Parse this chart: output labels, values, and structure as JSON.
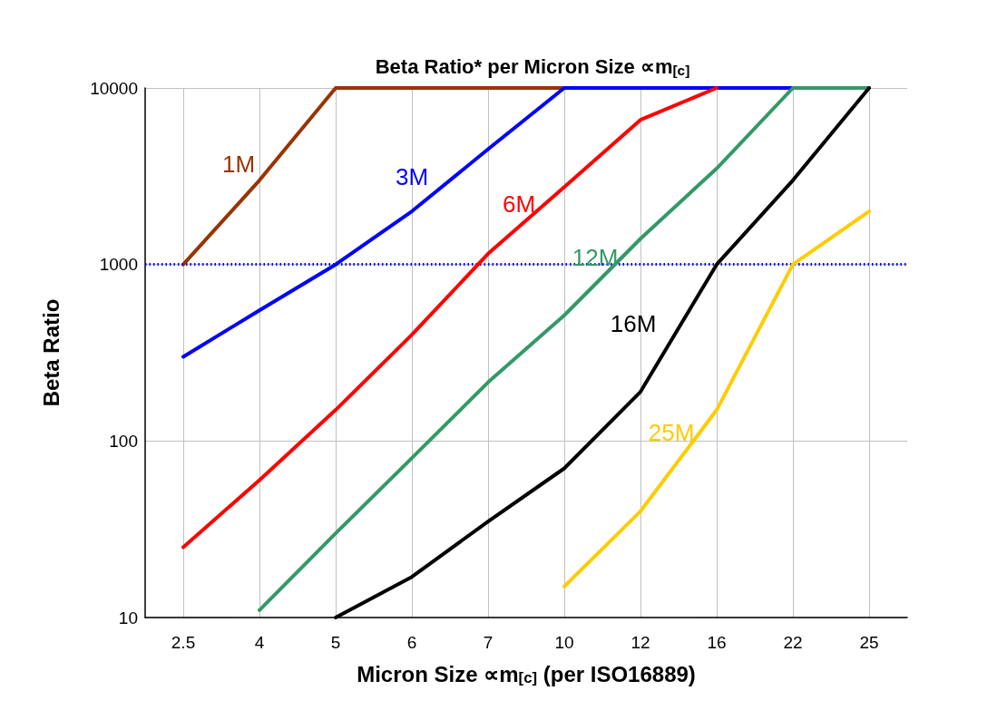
{
  "chart_data": {
    "type": "line",
    "title": "Beta Ratio* per Micron Size ∝m$_{[c]}$",
    "xlabel": "Micron Size ∝m$_{[c]}$ (per ISO16889)",
    "ylabel": "Beta Ratio",
    "categories": [
      "2.5",
      "4",
      "5",
      "6",
      "7",
      "10",
      "12",
      "16",
      "22",
      "25"
    ],
    "series": [
      {
        "name": "1M",
        "color": "#993300",
        "values": [
          1000,
          3000,
          10000,
          10000,
          10000,
          10000,
          null,
          null,
          null,
          null
        ]
      },
      {
        "name": "3M",
        "color": "#0000ff",
        "values": [
          300,
          550,
          1000,
          2000,
          4500,
          10000,
          10000,
          10000,
          10000,
          null
        ]
      },
      {
        "name": "6M",
        "color": "#ff0000",
        "values": [
          25,
          60,
          150,
          400,
          1150,
          2750,
          6600,
          10000,
          null,
          null
        ]
      },
      {
        "name": "12M",
        "color": "#339966",
        "values": [
          null,
          11,
          30,
          80,
          215,
          515,
          1400,
          3500,
          10000,
          10000
        ]
      },
      {
        "name": "16M",
        "color": "#000000",
        "values": [
          null,
          null,
          10,
          17,
          35,
          70,
          190,
          1000,
          3000,
          10000
        ]
      },
      {
        "name": "25M",
        "color": "#ffcc00",
        "values": [
          null,
          null,
          null,
          null,
          null,
          15,
          40,
          150,
          1000,
          2000
        ]
      }
    ],
    "log": "y",
    "ylim": [
      10,
      10000
    ],
    "yticks": [
      10,
      100,
      1000,
      10000
    ],
    "grid": true,
    "legend": false,
    "marker": "none",
    "line_style": "solid",
    "ref_lines": [
      {
        "axis": "y",
        "value": 1000,
        "color": "#0000ff",
        "line_style": "dotted"
      }
    ]
  }
}
